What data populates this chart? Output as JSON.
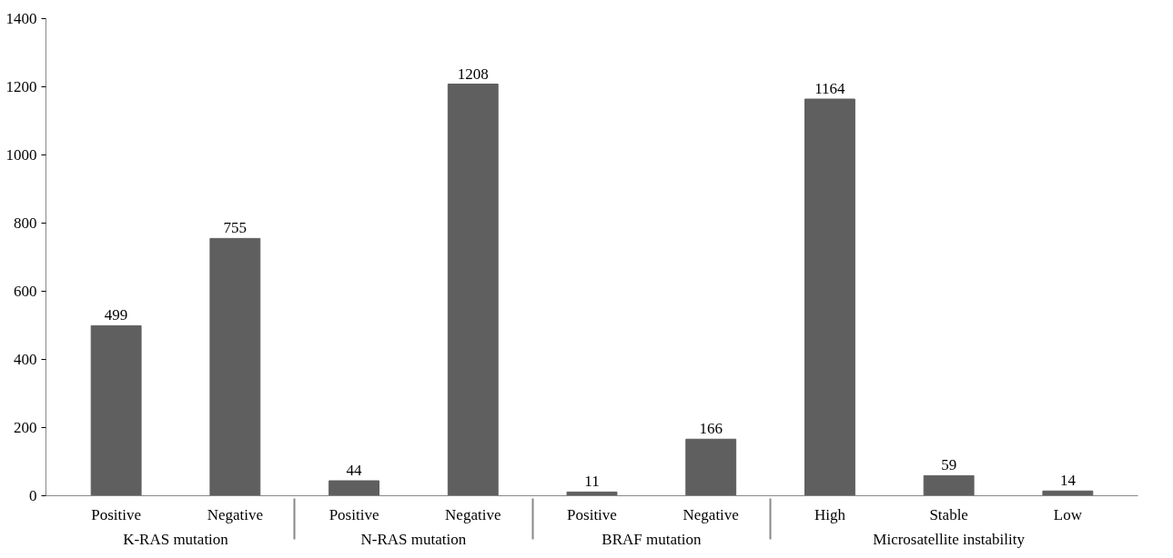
{
  "chart_data": {
    "type": "bar",
    "categories": [
      "Positive",
      "Negative",
      "Positive",
      "Negative",
      "Positive",
      "Negative",
      "High",
      "Stable",
      "Low"
    ],
    "values": [
      499,
      755,
      44,
      1208,
      11,
      166,
      1164,
      59,
      14
    ],
    "color": "#5f5f5f",
    "data_labels": true,
    "ylim": [
      0,
      1400
    ],
    "yticks": [
      0,
      200,
      400,
      600,
      800,
      1000,
      1200,
      1400
    ],
    "grid": false,
    "annotations": [
      "K-RAS mutation",
      "N-RAS mutation",
      "BRAF mutation",
      "Microsatellite instability"
    ]
  }
}
